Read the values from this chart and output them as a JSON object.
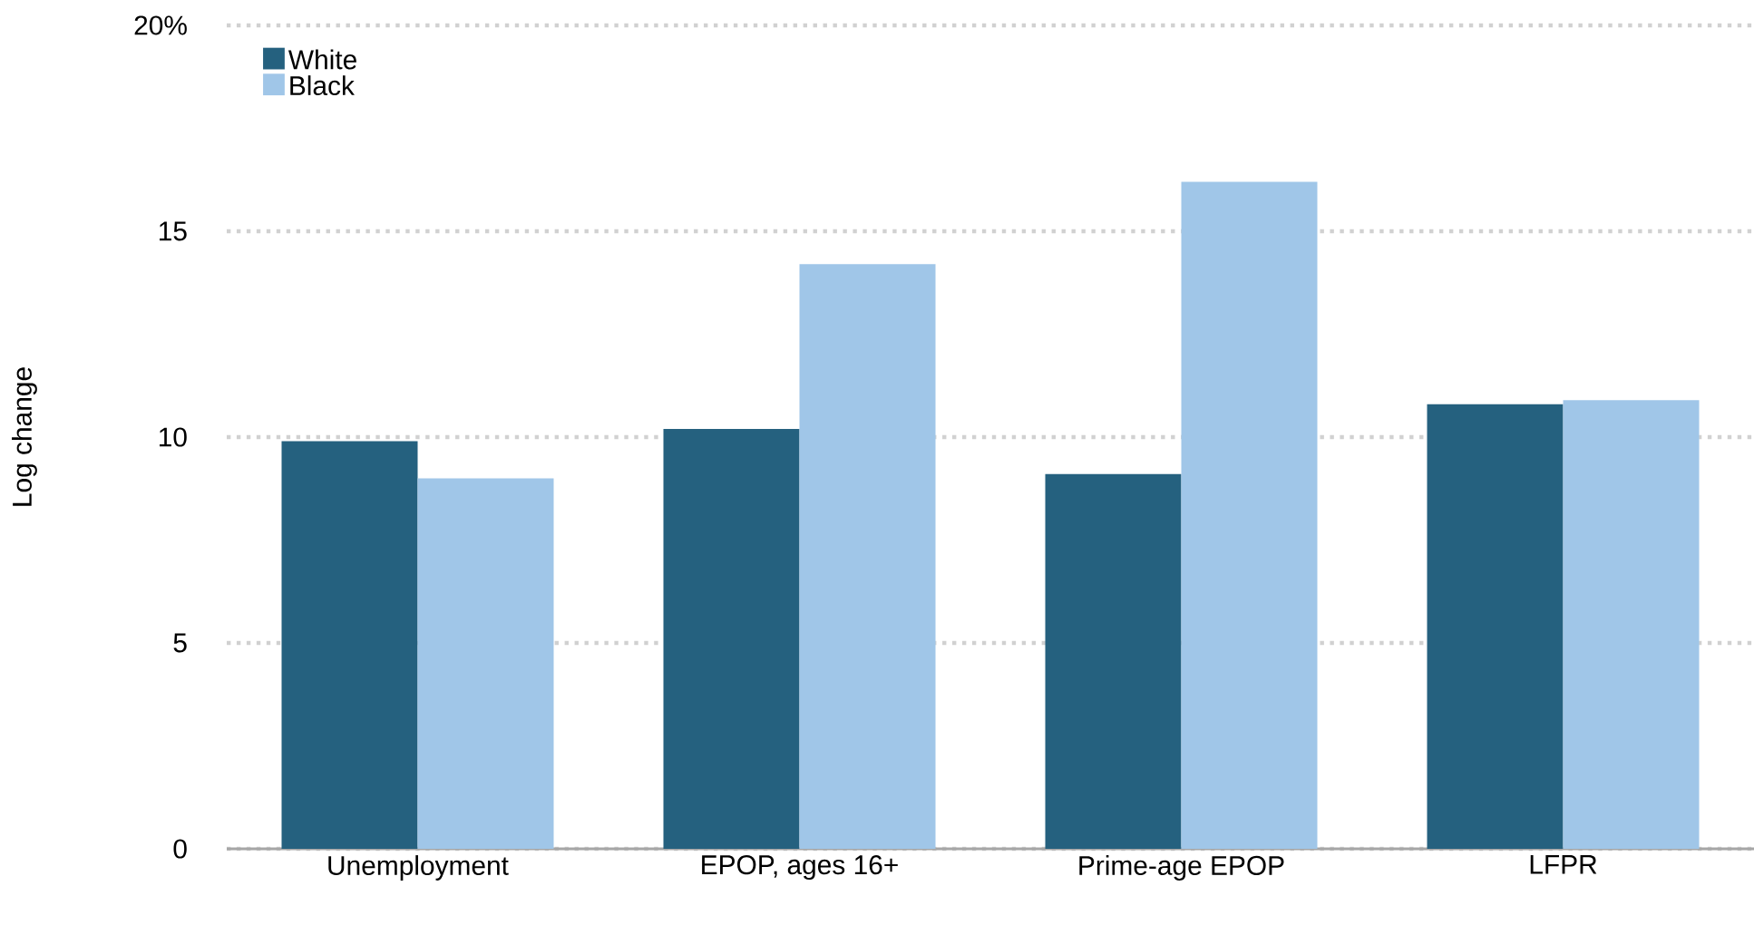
{
  "chart_data": {
    "type": "bar",
    "ylabel": "Log change",
    "categories": [
      "Unemployment",
      "EPOP, ages 16+",
      "Prime-age EPOP",
      "LFPR"
    ],
    "series": [
      {
        "name": "White",
        "color": "#25617f",
        "values": [
          9.9,
          10.2,
          9.1,
          10.8
        ]
      },
      {
        "name": "Black",
        "color": "#a0c6e8",
        "values": [
          9.0,
          14.2,
          16.2,
          10.9
        ]
      }
    ],
    "ylim": [
      0,
      20
    ],
    "yticks": [
      0,
      5,
      10,
      15,
      {
        "value": 20,
        "label": "20%"
      }
    ],
    "grid": "y",
    "legend": "top left"
  }
}
